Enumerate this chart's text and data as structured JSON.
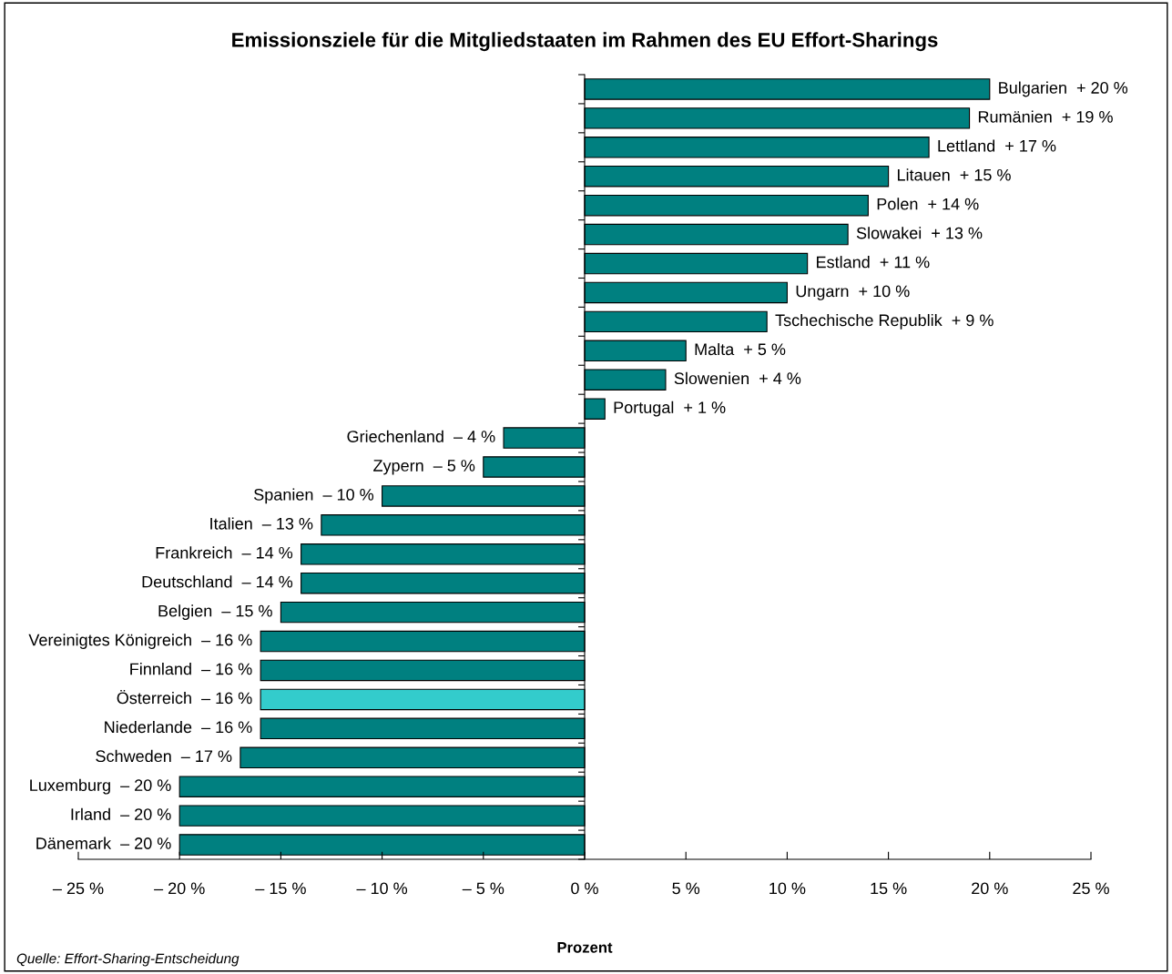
{
  "chart_data": {
    "type": "bar",
    "orientation": "horizontal",
    "title": "Emissionsziele für die Mitgliedstaaten im Rahmen des EU Effort-Sharings",
    "xlabel": "Prozent",
    "categories": [
      "Bulgarien",
      "Rumänien",
      "Lettland",
      "Litauen",
      "Polen",
      "Slowakei",
      "Estland",
      "Ungarn",
      "Tschechische Republik",
      "Malta",
      "Slowenien",
      "Portugal",
      "Griechenland",
      "Zypern",
      "Spanien",
      "Italien",
      "Frankreich",
      "Deutschland",
      "Belgien",
      "Vereinigtes Königreich",
      "Finnland",
      "Österreich",
      "Niederlande",
      "Schweden",
      "Luxemburg",
      "Irland",
      "Dänemark"
    ],
    "values": [
      20,
      19,
      17,
      15,
      14,
      13,
      11,
      10,
      9,
      5,
      4,
      1,
      -4,
      -5,
      -10,
      -13,
      -14,
      -14,
      -15,
      -16,
      -16,
      -16,
      -16,
      -17,
      -20,
      -20,
      -20
    ],
    "value_labels": [
      "+ 20 %",
      "+ 19 %",
      "+ 17 %",
      "+ 15 %",
      "+ 14 %",
      "+ 13 %",
      "+ 11 %",
      "+ 10 %",
      "+ 9 %",
      "+ 5 %",
      "+ 4 %",
      "+ 1 %",
      "– 4 %",
      "– 5 %",
      "– 10 %",
      "– 13 %",
      "– 14 %",
      "– 14 %",
      "– 15 %",
      "– 16 %",
      "– 16 %",
      "– 16 %",
      "– 16 %",
      "– 17 %",
      "– 20 %",
      "– 20 %",
      "– 20 %"
    ],
    "colors": [
      "#008080",
      "#008080",
      "#008080",
      "#008080",
      "#008080",
      "#008080",
      "#008080",
      "#008080",
      "#008080",
      "#008080",
      "#008080",
      "#008080",
      "#008080",
      "#008080",
      "#008080",
      "#008080",
      "#008080",
      "#008080",
      "#008080",
      "#008080",
      "#008080",
      "#33cccc",
      "#008080",
      "#008080",
      "#008080",
      "#008080",
      "#008080"
    ],
    "xlim": [
      -25,
      25
    ],
    "xticks": [
      {
        "value": -25,
        "label": "– 25 %"
      },
      {
        "value": -20,
        "label": "– 20 %"
      },
      {
        "value": -15,
        "label": "– 15 %"
      },
      {
        "value": -10,
        "label": "– 10 %"
      },
      {
        "value": -5,
        "label": "– 5 %"
      },
      {
        "value": 0,
        "label": "0 %"
      },
      {
        "value": 5,
        "label": "5 %"
      },
      {
        "value": 10,
        "label": "10 %"
      },
      {
        "value": 15,
        "label": "15 %"
      },
      {
        "value": 20,
        "label": "20 %"
      },
      {
        "value": 25,
        "label": "25 %"
      }
    ],
    "tick_labels": "x",
    "annotations": [
      "Quelle: Effort-Sharing-Entscheidung"
    ]
  }
}
